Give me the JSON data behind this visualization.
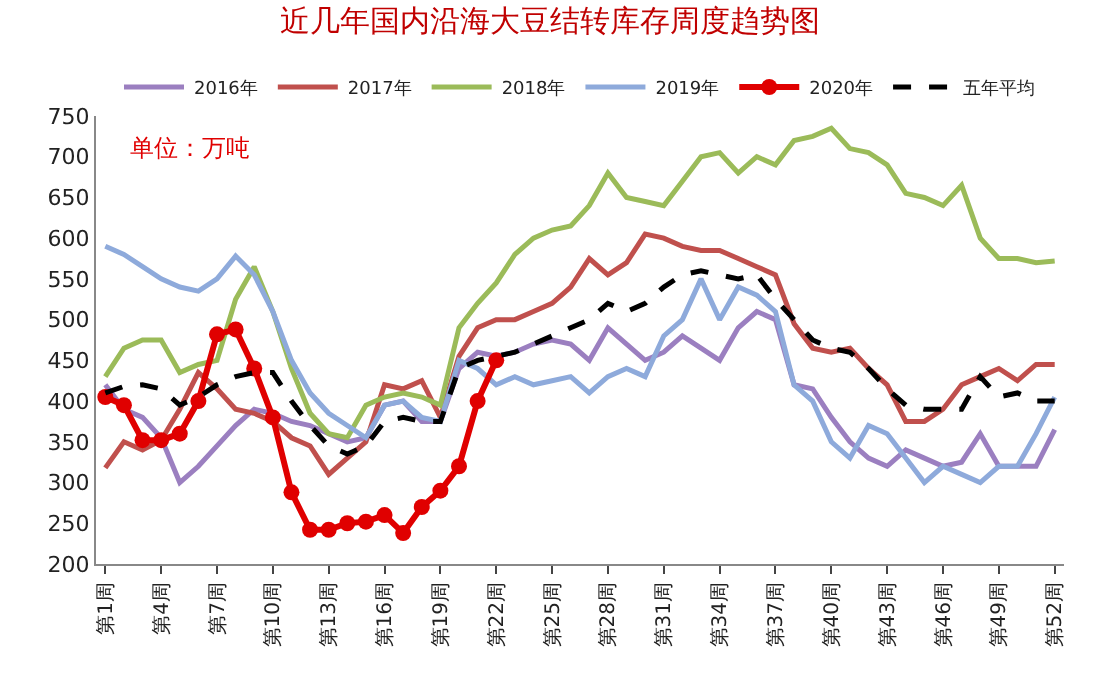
{
  "chart_data": {
    "type": "line",
    "title": "近几年国内沿海大豆结转库存周度趋势图",
    "annotations": [
      "单位：万吨"
    ],
    "categories": [
      "第1周",
      null,
      null,
      "第4周",
      null,
      null,
      "第7周",
      null,
      null,
      "第10周",
      null,
      null,
      "第13周",
      null,
      null,
      "第16周",
      null,
      null,
      "第19周",
      null,
      null,
      "第22周",
      null,
      null,
      "第25周",
      null,
      null,
      "第28周",
      null,
      null,
      "第31周",
      null,
      null,
      "第34周",
      null,
      null,
      "第37周",
      null,
      null,
      "第40周",
      null,
      null,
      "第43周",
      null,
      null,
      "第46周",
      null,
      null,
      "第49周",
      null,
      null,
      "第52周"
    ],
    "ylim": [
      200,
      750
    ],
    "yticks": [
      200,
      250,
      300,
      350,
      400,
      450,
      500,
      550,
      600,
      650,
      700,
      750
    ],
    "grid": false,
    "legend": "top",
    "marker": "none",
    "line_style": "solid",
    "series": [
      {
        "name": "2016年",
        "color": "#9b7fc0",
        "values": [
          420,
          390,
          380,
          355,
          300,
          320,
          345,
          370,
          390,
          385,
          375,
          370,
          360,
          350,
          355,
          395,
          400,
          375,
          375,
          440,
          460,
          455,
          460,
          470,
          475,
          470,
          450,
          490,
          470,
          450,
          460,
          480,
          465,
          450,
          490,
          510,
          500,
          420,
          415,
          380,
          350,
          330,
          320,
          340,
          330,
          320,
          325,
          360,
          320,
          320,
          320,
          365
        ]
      },
      {
        "name": "2017年",
        "color": "#c0504d",
        "values": [
          318,
          350,
          340,
          352,
          390,
          435,
          415,
          390,
          385,
          375,
          355,
          345,
          310,
          330,
          350,
          420,
          415,
          425,
          380,
          455,
          490,
          500,
          500,
          510,
          520,
          540,
          575,
          555,
          570,
          605,
          600,
          590,
          585,
          585,
          575,
          565,
          555,
          495,
          465,
          460,
          465,
          440,
          420,
          375,
          375,
          390,
          420,
          430,
          440,
          425,
          445,
          445
        ]
      },
      {
        "name": "2018年",
        "color": "#9bbb59",
        "values": [
          430,
          465,
          475,
          475,
          435,
          445,
          450,
          525,
          565,
          510,
          440,
          385,
          360,
          355,
          395,
          405,
          410,
          405,
          395,
          490,
          520,
          545,
          580,
          600,
          610,
          615,
          640,
          680,
          650,
          645,
          640,
          670,
          700,
          705,
          680,
          700,
          690,
          720,
          725,
          735,
          710,
          705,
          690,
          655,
          650,
          640,
          665,
          600,
          575,
          575,
          570,
          572
        ]
      },
      {
        "name": "2019年",
        "color": "#8eaadb",
        "values": [
          590,
          580,
          565,
          550,
          540,
          535,
          550,
          578,
          555,
          510,
          450,
          410,
          385,
          370,
          355,
          395,
          400,
          380,
          375,
          450,
          440,
          420,
          430,
          420,
          425,
          430,
          410,
          430,
          440,
          430,
          480,
          500,
          550,
          500,
          540,
          530,
          510,
          420,
          400,
          350,
          330,
          370,
          360,
          330,
          300,
          320,
          310,
          300,
          320,
          320,
          360,
          405
        ]
      },
      {
        "name": "2020年",
        "color": "#e00000",
        "marker": "circle",
        "values": [
          405,
          395,
          352,
          352,
          360,
          400,
          482,
          488,
          440,
          380,
          288,
          242,
          242,
          250,
          252,
          260,
          238,
          270,
          290,
          320,
          400,
          450,
          null,
          null,
          null,
          null,
          null,
          null,
          null,
          null,
          null,
          null,
          null,
          null,
          null,
          null,
          null,
          null,
          null,
          null,
          null,
          null,
          null,
          null,
          null,
          null,
          null,
          null,
          null,
          null,
          null,
          null
        ]
      },
      {
        "name": "五年平均",
        "color": "#000000",
        "line_style": "dashed",
        "values": [
          410,
          418,
          420,
          415,
          395,
          405,
          420,
          430,
          435,
          435,
          400,
          370,
          345,
          335,
          345,
          375,
          380,
          375,
          375,
          440,
          450,
          455,
          460,
          470,
          480,
          490,
          500,
          520,
          510,
          520,
          540,
          555,
          560,
          555,
          550,
          555,
          525,
          500,
          475,
          465,
          460,
          440,
          415,
          395,
          390,
          390,
          390,
          430,
          405,
          410,
          400,
          400
        ]
      }
    ]
  }
}
